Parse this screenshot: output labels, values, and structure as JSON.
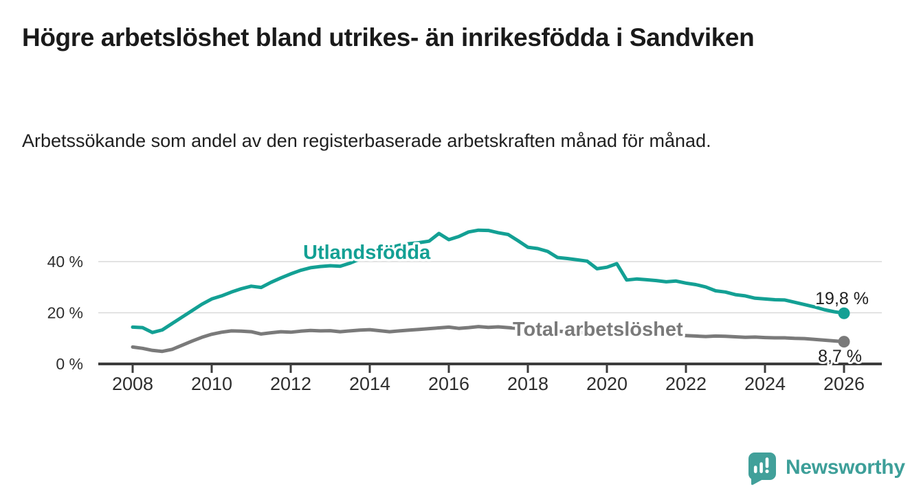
{
  "header": {
    "title": "Högre arbetslöshet bland utrikes- än inrikesfödda i Sandviken",
    "subtitle": "Arbetssökande som andel av den registerbaserade arbetskraften månad för månad."
  },
  "chart_data": {
    "type": "line",
    "title": "Högre arbetslöshet bland utrikes- än inrikesfödda i Sandviken",
    "subtitle": "Arbetssökande som andel av den registerbaserade arbetskraften månad för månad.",
    "unit": "%",
    "x_start": 2008,
    "x_step": 0.25,
    "x_ticks": [
      2008,
      2010,
      2012,
      2014,
      2016,
      2018,
      2020,
      2022,
      2024,
      2026
    ],
    "y_ticks": [
      {
        "value": 0,
        "label": "0 %"
      },
      {
        "value": 20,
        "label": "20 %"
      },
      {
        "value": 40,
        "label": "40 %"
      }
    ],
    "ylim": [
      0,
      56
    ],
    "xlim": [
      2007.5,
      2026.6
    ],
    "grid": true,
    "legend_position": "inline-labels",
    "grid_color": "#d9d9d9",
    "axis_color": "#3c3c3c",
    "tick_label_color": "#2e2e2e",
    "annotation_color": "#1f1f1f",
    "series": [
      {
        "name": "Utlandsfödda",
        "color": "#13a094",
        "end_label": "19,8 %",
        "end_value": 19.8,
        "values": [
          14.4,
          14.2,
          12.3,
          13.3,
          15.8,
          18.3,
          20.8,
          23.3,
          25.4,
          26.6,
          28.1,
          29.4,
          30.4,
          29.9,
          31.9,
          33.6,
          35.2,
          36.6,
          37.6,
          38.1,
          38.4,
          38.2,
          39.4,
          41.0,
          42.6,
          44.1,
          45.4,
          46.4,
          47.0,
          47.4,
          48.0,
          51.0,
          48.6,
          49.8,
          51.6,
          52.3,
          52.2,
          51.3,
          50.6,
          48.2,
          45.6,
          45.1,
          44.0,
          41.6,
          41.2,
          40.7,
          40.2,
          37.2,
          37.8,
          39.2,
          32.8,
          33.2,
          32.9,
          32.6,
          32.1,
          32.4,
          31.6,
          31.0,
          30.1,
          28.6,
          28.1,
          27.1,
          26.6,
          25.7,
          25.4,
          25.1,
          25.0,
          24.1,
          23.2,
          22.3,
          21.2,
          20.4,
          19.8
        ]
      },
      {
        "name": "Total arbetslöshet",
        "color": "#7a7a7a",
        "end_label": "8,7 %",
        "end_value": 8.7,
        "values": [
          6.6,
          6.1,
          5.3,
          4.9,
          5.7,
          7.3,
          8.9,
          10.4,
          11.6,
          12.4,
          12.9,
          12.8,
          12.6,
          11.7,
          12.2,
          12.6,
          12.4,
          12.8,
          13.1,
          12.9,
          13.0,
          12.6,
          12.9,
          13.2,
          13.4,
          13.0,
          12.6,
          12.9,
          13.2,
          13.5,
          13.8,
          14.1,
          14.4,
          13.9,
          14.2,
          14.6,
          14.3,
          14.5,
          14.2,
          13.9,
          13.6,
          13.3,
          13.0,
          12.8,
          12.5,
          12.3,
          12.2,
          12.0,
          12.4,
          12.8,
          12.5,
          12.2,
          12.0,
          11.8,
          11.5,
          11.3,
          11.1,
          10.9,
          10.7,
          10.9,
          10.8,
          10.6,
          10.4,
          10.5,
          10.3,
          10.2,
          10.2,
          10.0,
          9.9,
          9.6,
          9.3,
          9.0,
          8.7
        ]
      }
    ]
  },
  "footer": {
    "brand": "Newsworthy",
    "brand_color": "#3d9f99",
    "logo_icon": "newsworthy-speech-bubble-chart-icon"
  }
}
